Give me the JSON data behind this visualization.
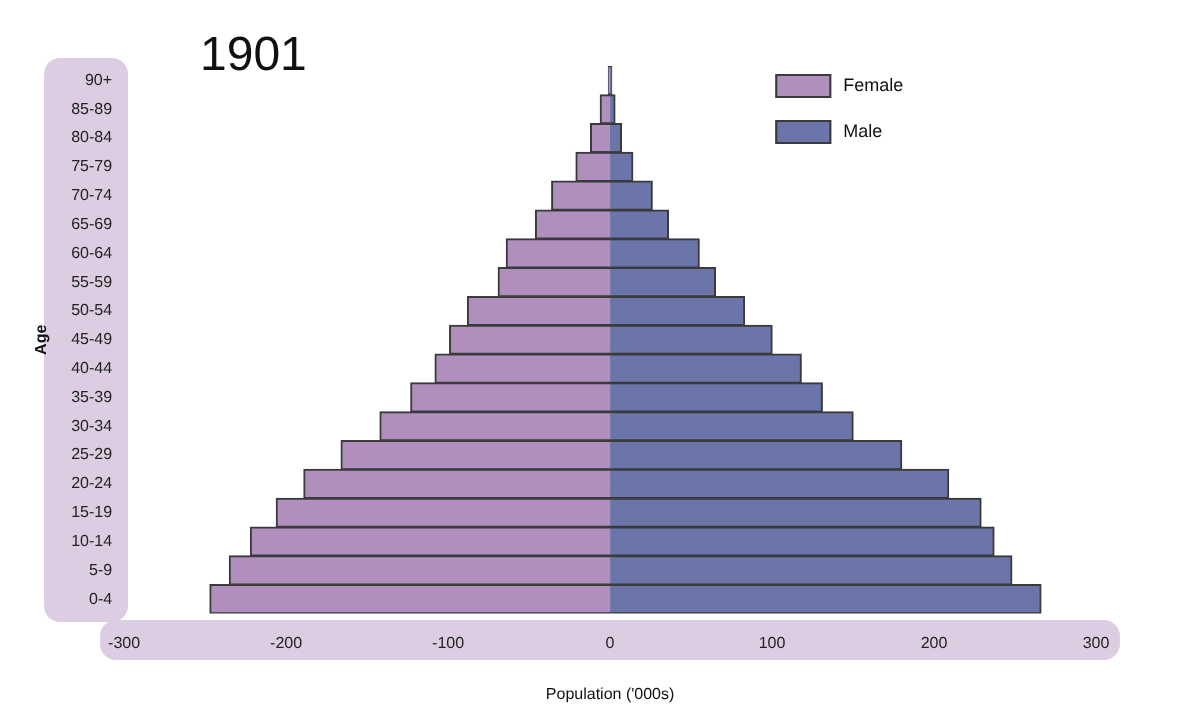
{
  "chart_data": {
    "type": "bar",
    "orientation": "horizontal",
    "stacked": true,
    "title": "1901",
    "xlabel": "Population ('000s)",
    "ylabel": "Age",
    "categories": [
      "90+",
      "85-89",
      "80-84",
      "75-79",
      "70-74",
      "65-69",
      "60-64",
      "55-59",
      "50-54",
      "45-49",
      "40-44",
      "35-39",
      "30-34",
      "25-29",
      "20-24",
      "15-19",
      "10-14",
      "5-9",
      "0-4"
    ],
    "series": [
      {
        "name": "Female",
        "color": "#b08fbf",
        "values": [
          -1,
          -6,
          -12,
          -21,
          -36,
          -46,
          -64,
          -69,
          -88,
          -99,
          -108,
          -123,
          -142,
          -166,
          -189,
          -206,
          -222,
          -235,
          -247
        ]
      },
      {
        "name": "Male",
        "color": "#6b75aa",
        "values": [
          1,
          3,
          7,
          14,
          26,
          36,
          55,
          65,
          83,
          100,
          118,
          131,
          150,
          180,
          209,
          229,
          237,
          248,
          266
        ]
      }
    ],
    "xlim": [
      -300,
      300
    ],
    "xticks": [
      -300,
      -200,
      -100,
      0,
      100,
      200,
      300
    ],
    "grid": false,
    "legend": "top right"
  }
}
